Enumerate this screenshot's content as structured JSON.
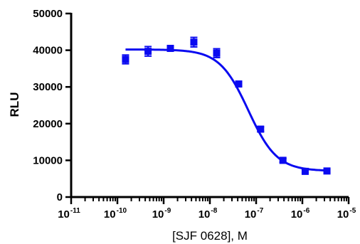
{
  "chart_data": {
    "type": "scatter",
    "title": "",
    "xlabel": "[SJF 0628], M",
    "ylabel": "RLU",
    "x_scale": "log10",
    "xlim": [
      1e-11,
      1e-05
    ],
    "ylim": [
      0,
      50000
    ],
    "y_ticks": [
      0,
      10000,
      20000,
      30000,
      40000,
      50000
    ],
    "y_tick_labels": [
      "0",
      "10000",
      "20000",
      "30000",
      "40000",
      "50000"
    ],
    "x_tick_exponents": [
      "-11",
      "-10",
      "-9",
      "-8",
      "-7",
      "-6",
      "-5"
    ],
    "x_tick_base": "10",
    "grid": false,
    "legend": "none",
    "colors": {
      "series": "#0a0af0",
      "axes": "#000000"
    },
    "series": [
      {
        "marker": "square",
        "points": [
          {
            "x": 1.5e-10,
            "y": 37500,
            "err": 1200
          },
          {
            "x": 4.6e-10,
            "y": 39700,
            "err": 1300
          },
          {
            "x": 1.4e-09,
            "y": 40500,
            "err": 600
          },
          {
            "x": 4.5e-09,
            "y": 42200,
            "err": 1300
          },
          {
            "x": 1.4e-08,
            "y": 39200,
            "err": 1200
          },
          {
            "x": 4.2e-08,
            "y": 30800,
            "err": 500
          },
          {
            "x": 1.25e-07,
            "y": 18500,
            "err": 600
          },
          {
            "x": 3.8e-07,
            "y": 10000,
            "err": 500
          },
          {
            "x": 1.15e-06,
            "y": 7000,
            "err": 400
          },
          {
            "x": 3.4e-06,
            "y": 7100,
            "err": 400
          }
        ],
        "fit": {
          "model": "4PL",
          "top": 40200,
          "bottom": 7100,
          "log_ic50": -7.17,
          "hill": 1.4,
          "x_range": [
            1.5e-10,
            3.4e-06
          ]
        }
      }
    ]
  }
}
